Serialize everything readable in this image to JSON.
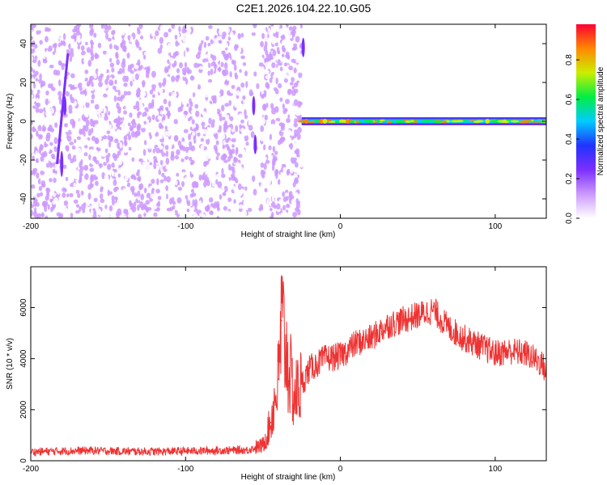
{
  "title": "C2E1.2026.104.22.10.G05",
  "colors": {
    "snr_line": "#ee3333",
    "colormap": [
      "#ffffff",
      "#cc99ff",
      "#7b2fff",
      "#2233ff",
      "#00ccff",
      "#00ee44",
      "#ccee00",
      "#ff8800",
      "#ff0033"
    ]
  },
  "chart_data": [
    {
      "type": "heatmap",
      "title": "",
      "xlabel": "Height of straight line (km)",
      "ylabel": "Frequency (Hz)",
      "xlim": [
        -200,
        133
      ],
      "ylim": [
        -50,
        50
      ],
      "xticks": [
        "-200",
        "-100",
        "0",
        "100"
      ],
      "yticks": [
        "-40",
        "-20",
        "0",
        "20",
        "40"
      ],
      "colorbar": {
        "label": "Normalized spectral amplitude",
        "range": [
          0,
          0.98
        ],
        "ticks": [
          "0.0",
          "0.2",
          "0.4",
          "0.6",
          "0.8"
        ]
      },
      "regions": [
        {
          "name": "noise",
          "x_range": [
            -200,
            -25
          ],
          "amplitude": 0.15
        },
        {
          "name": "signal",
          "x_range": [
            -25,
            133
          ],
          "frequency": 0,
          "peak_amplitude": 0.95
        }
      ]
    },
    {
      "type": "line",
      "title": "",
      "xlabel": "Height of straight line (km)",
      "ylabel": "SNR (10 * v/v)",
      "xlim": [
        -200,
        133
      ],
      "ylim": [
        0,
        7600
      ],
      "xticks": [
        "-200",
        "-100",
        "0",
        "100"
      ],
      "yticks": [
        "0",
        "2000",
        "4000",
        "6000"
      ],
      "series": [
        {
          "x": [
            -200,
            -180,
            -160,
            -140,
            -120,
            -100,
            -80,
            -60,
            -50,
            -45,
            -40,
            -38,
            -35,
            -30,
            -25,
            -20,
            -10,
            0,
            10,
            20,
            30,
            40,
            50,
            60,
            70,
            80,
            90,
            100,
            110,
            120,
            130,
            133
          ],
          "y": [
            350,
            380,
            400,
            370,
            360,
            380,
            400,
            420,
            600,
            1500,
            3200,
            5500,
            4200,
            2500,
            3000,
            3600,
            4000,
            4100,
            4600,
            4800,
            5300,
            5500,
            5700,
            5900,
            5200,
            4800,
            4500,
            4200,
            4300,
            4200,
            3800,
            3500
          ]
        }
      ]
    }
  ]
}
